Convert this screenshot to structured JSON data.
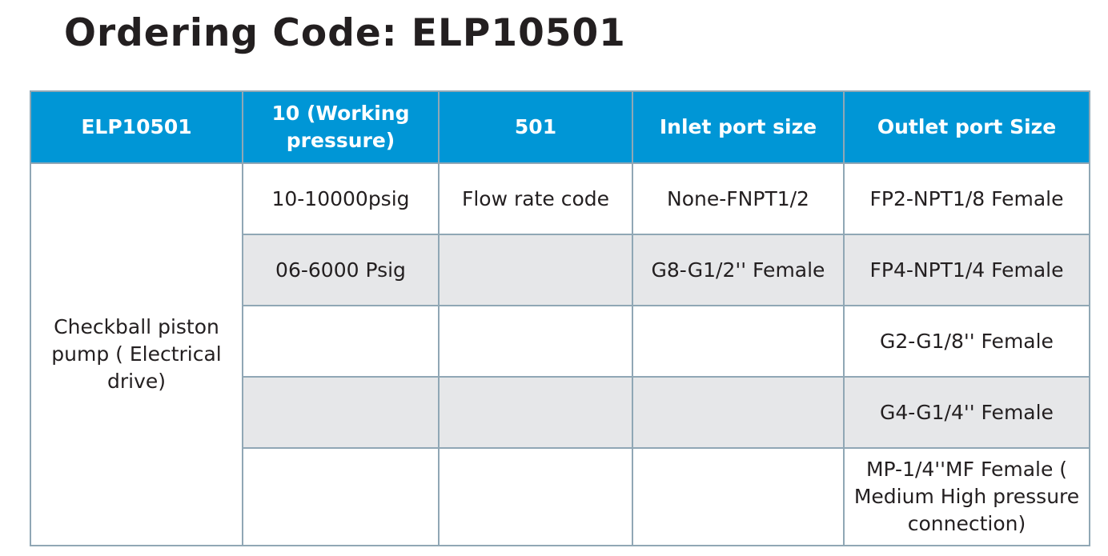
{
  "title": "Ordering Code: ELP10501",
  "colors": {
    "header_bg": "#0096d6",
    "header_text": "#ffffff",
    "border": "#90a7b5",
    "alt_row": "#e6e7e9"
  },
  "table": {
    "headers": [
      "ELP10501",
      "10 (Working pressure)",
      "501",
      "Inlet port size",
      "Outlet port Size"
    ],
    "description": "Checkball piston pump ( Electrical drive)",
    "rows": [
      [
        "10-10000psig",
        "Flow rate code",
        "None-FNPT1/2",
        "FP2-NPT1/8 Female"
      ],
      [
        "06-6000 Psig",
        "",
        "G8-G1/2'' Female",
        "FP4-NPT1/4 Female"
      ],
      [
        "",
        "",
        "",
        "G2-G1/8'' Female"
      ],
      [
        "",
        "",
        "",
        "G4-G1/4'' Female"
      ],
      [
        "",
        "",
        "",
        "MP-1/4''MF Female ( Medium High pressure connection)"
      ]
    ]
  }
}
